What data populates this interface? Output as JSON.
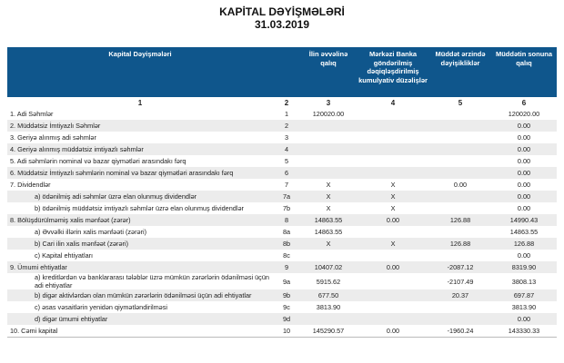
{
  "title": "KAPİTAL DƏYİŞMƏLƏRİ",
  "date": "31.03.2019",
  "headers": [
    "Kapital Dəyişmələri",
    "",
    "İlin əvvəlinə qalıq",
    "Mərkəzi Banka göndərilmiş dəqiqləşdirilmiş kumulyativ düzəlişlər",
    "Müddət ərzində dəyişikliklər",
    "Müddətin sonuna qalıq"
  ],
  "column_numbers": [
    "1",
    "2",
    "3",
    "4",
    "5",
    "6"
  ],
  "rows": [
    {
      "label": "1. Adi Səhmlər",
      "code": "1",
      "c3": "120020.00",
      "c4": "",
      "c5": "",
      "c6": "120020.00",
      "sub": false
    },
    {
      "label": "2. Müddətsiz İmtiyazlı Səhmlər",
      "code": "2",
      "c3": "",
      "c4": "",
      "c5": "",
      "c6": "0.00",
      "sub": false
    },
    {
      "label": "3. Geriyə alınmış adi səhmlər",
      "code": "3",
      "c3": "",
      "c4": "",
      "c5": "",
      "c6": "0.00",
      "sub": false
    },
    {
      "label": "4. Geriyə alınmış müddətsiz imtiyazlı səhmlər",
      "code": "4",
      "c3": "",
      "c4": "",
      "c5": "",
      "c6": "0.00",
      "sub": false
    },
    {
      "label": "5. Adi səhmlərin nominal və bazar qiymətləri arasındakı fərq",
      "code": "5",
      "c3": "",
      "c4": "",
      "c5": "",
      "c6": "0.00",
      "sub": false
    },
    {
      "label": "6. Müddətsiz İmtiyazlı səhmlərin nominal və bazar qiymətləri arasındakı fərq",
      "code": "6",
      "c3": "",
      "c4": "",
      "c5": "",
      "c6": "0.00",
      "sub": false
    },
    {
      "label": "7. Dividendlər",
      "code": "7",
      "c3": "X",
      "c4": "X",
      "c5": "0.00",
      "c6": "0.00",
      "sub": false
    },
    {
      "label": "a) ödənilmiş adi səhmlər üzrə elan olunmuş dividendlər",
      "code": "7a",
      "c3": "X",
      "c4": "X",
      "c5": "",
      "c6": "0.00",
      "sub": true
    },
    {
      "label": "b) ödənilmiş müddətsiz imtiyazlı səhmlər üzrə elan olunmuş dividendlər",
      "code": "7b",
      "c3": "X",
      "c4": "X",
      "c5": "",
      "c6": "0.00",
      "sub": true
    },
    {
      "label": "8. Bölüşdürülməmiş xalis mənfəət (zərər)",
      "code": "8",
      "c3": "14863.55",
      "c4": "0.00",
      "c5": "126.88",
      "c6": "14990.43",
      "sub": false
    },
    {
      "label": "a) Əvvəlki illərin xalis mənfəəti (zərəri)",
      "code": "8a",
      "c3": "14863.55",
      "c4": "",
      "c5": "",
      "c6": "14863.55",
      "sub": true
    },
    {
      "label": "b) Cari ilin xalis mənfəət (zərəri)",
      "code": "8b",
      "c3": "X",
      "c4": "X",
      "c5": "126.88",
      "c6": "126.88",
      "sub": true
    },
    {
      "label": "c) Kapital ehtiyatları",
      "code": "8c",
      "c3": "",
      "c4": "",
      "c5": "",
      "c6": "0.00",
      "sub": true
    },
    {
      "label": "9. Ümumi ehtiyatlar",
      "code": "9",
      "c3": "10407.02",
      "c4": "0.00",
      "c5": "-2087.12",
      "c6": "8319.90",
      "sub": false
    },
    {
      "label": "a) kreditlərdən və banklararası  tələblər üzrə mümkün zərərlərin ödənilməsi üçün adi ehtiyatlar",
      "code": "9a",
      "c3": "5915.62",
      "c4": "",
      "c5": "-2107.49",
      "c6": "3808.13",
      "sub": true
    },
    {
      "label": "b) digər aktivlərdən olan mümkün zərərlərin ödənilməsi üçün adi ehtiyatlar",
      "code": "9b",
      "c3": "677.50",
      "c4": "",
      "c5": "20.37",
      "c6": "697.87",
      "sub": true
    },
    {
      "label": "c) əsas vəsaitlərin yenidən qiymətləndirilməsi",
      "code": "9c",
      "c3": "3813.90",
      "c4": "",
      "c5": "",
      "c6": "3813.90",
      "sub": true
    },
    {
      "label": "d) digər ümumi ehtiyatlar",
      "code": "9d",
      "c3": "",
      "c4": "",
      "c5": "",
      "c6": "0.00",
      "sub": true
    },
    {
      "label": "10. Cəmi kapital",
      "code": "10",
      "c3": "145290.57",
      "c4": "0.00",
      "c5": "-1960.24",
      "c6": "143330.33",
      "sub": false
    }
  ]
}
